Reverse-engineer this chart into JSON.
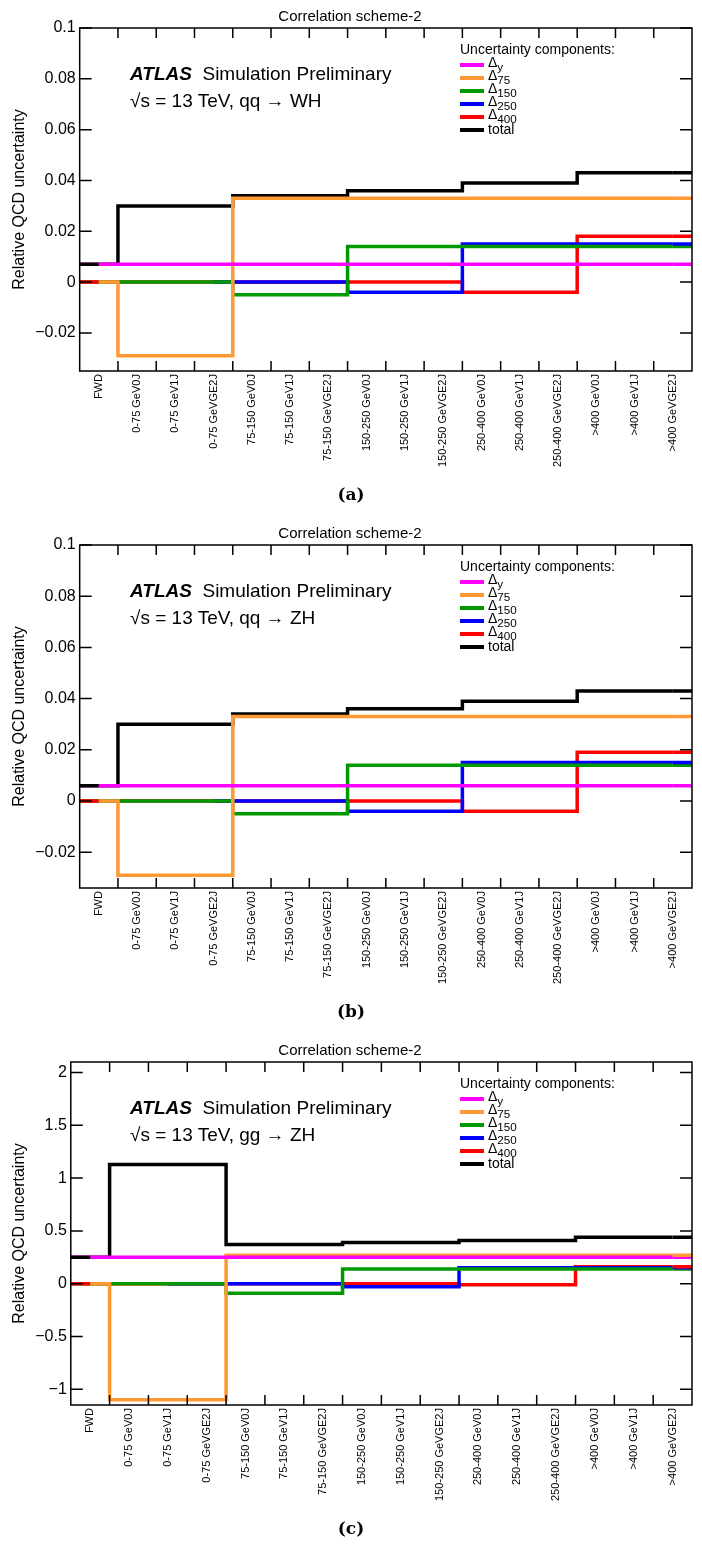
{
  "chart_data": [
    {
      "type": "step",
      "title": "Correlation scheme-2",
      "ylabel": "Relative QCD uncertainty",
      "legend_title": "Uncertainty components:",
      "legend": "top right",
      "grid": false,
      "annotations": [
        "ATLAS Simulation Preliminary",
        "√s = 13 TeV, qq → WH",
        "(a)"
      ],
      "categories": [
        "FWD",
        "0-75 GeV0J",
        "0-75 GeV1J",
        "0-75 GeVGE2J",
        "75-150 GeV0J",
        "75-150 GeV1J",
        "75-150 GeVGE2J",
        "150-250 GeV0J",
        "150-250 GeV1J",
        "150-250 GeVGE2J",
        "250-400 GeV0J",
        "250-400 GeV1J",
        "250-400 GeVGE2J",
        ">400 GeV0J",
        ">400 GeV1J",
        ">400 GeVGE2J"
      ],
      "ylim": [
        -0.035,
        0.1
      ],
      "yticks": [
        {
          "value": -0.02,
          "label": "−0.02"
        },
        0,
        0.02,
        0.04,
        0.06,
        0.08,
        0.1
      ],
      "series": [
        {
          "name": "Δ$_{y}$",
          "color": "#ff00ff",
          "values": [
            0.007,
            0.007,
            0.007,
            0.007,
            0.007,
            0.007,
            0.007,
            0.007,
            0.007,
            0.007,
            0.007,
            0.007,
            0.007,
            0.007,
            0.007,
            0.007
          ]
        },
        {
          "name": "Δ$_{75}$",
          "color": "#ff9933",
          "values": [
            0,
            -0.029,
            -0.029,
            -0.029,
            0.033,
            0.033,
            0.033,
            0.033,
            0.033,
            0.033,
            0.033,
            0.033,
            0.033,
            0.033,
            0.033,
            0.033
          ]
        },
        {
          "name": "Δ$_{150}$",
          "color": "#009900",
          "values": [
            0,
            0,
            0,
            0,
            -0.005,
            -0.005,
            -0.005,
            0.014,
            0.014,
            0.014,
            0.014,
            0.014,
            0.014,
            0.014,
            0.014,
            0.014
          ]
        },
        {
          "name": "Δ$_{250}$",
          "color": "#0000ff",
          "values": [
            null,
            null,
            null,
            0,
            0,
            0,
            0,
            -0.004,
            -0.004,
            -0.004,
            0.015,
            0.015,
            0.015,
            0.015,
            0.015,
            0.015
          ]
        },
        {
          "name": "Δ$_{400}$",
          "color": "#ff0000",
          "values": [
            0,
            0,
            0,
            0,
            0,
            0,
            0,
            0,
            0,
            0,
            -0.004,
            -0.004,
            -0.004,
            0.018,
            0.018,
            0.018
          ]
        },
        {
          "name": "total",
          "color": "#000000",
          "values": [
            0.007,
            0.03,
            0.03,
            0.03,
            0.034,
            0.034,
            0.034,
            0.036,
            0.036,
            0.036,
            0.039,
            0.039,
            0.039,
            0.043,
            0.043,
            0.043
          ]
        }
      ]
    },
    {
      "type": "step",
      "title": "Correlation scheme-2",
      "ylabel": "Relative QCD uncertainty",
      "legend_title": "Uncertainty components:",
      "legend": "top right",
      "grid": false,
      "annotations": [
        "ATLAS Simulation Preliminary",
        "√s = 13 TeV, qq → ZH",
        "(b)"
      ],
      "categories": [
        "FWD",
        "0-75 GeV0J",
        "0-75 GeV1J",
        "0-75 GeVGE2J",
        "75-150 GeV0J",
        "75-150 GeV1J",
        "75-150 GeVGE2J",
        "150-250 GeV0J",
        "150-250 GeV1J",
        "150-250 GeVGE2J",
        "250-400 GeV0J",
        "250-400 GeV1J",
        "250-400 GeVGE2J",
        ">400 GeV0J",
        ">400 GeV1J",
        ">400 GeVGE2J"
      ],
      "ylim": [
        -0.034,
        0.1
      ],
      "yticks": [
        {
          "value": -0.02,
          "label": "−0.02"
        },
        0,
        0.02,
        0.04,
        0.06,
        0.08,
        0.1
      ],
      "series": [
        {
          "name": "Δ$_{y}$",
          "color": "#ff00ff",
          "values": [
            0.006,
            0.006,
            0.006,
            0.006,
            0.006,
            0.006,
            0.006,
            0.006,
            0.006,
            0.006,
            0.006,
            0.006,
            0.006,
            0.006,
            0.006,
            0.006
          ]
        },
        {
          "name": "Δ$_{75}$",
          "color": "#ff9933",
          "values": [
            0,
            -0.029,
            -0.029,
            -0.029,
            0.033,
            0.033,
            0.033,
            0.033,
            0.033,
            0.033,
            0.033,
            0.033,
            0.033,
            0.033,
            0.033,
            0.033
          ]
        },
        {
          "name": "Δ$_{150}$",
          "color": "#009900",
          "values": [
            0,
            0,
            0,
            0,
            -0.005,
            -0.005,
            -0.005,
            0.014,
            0.014,
            0.014,
            0.014,
            0.014,
            0.014,
            0.014,
            0.014,
            0.014
          ]
        },
        {
          "name": "Δ$_{250}$",
          "color": "#0000ff",
          "values": [
            null,
            null,
            null,
            0,
            0,
            0,
            0,
            -0.004,
            -0.004,
            -0.004,
            0.015,
            0.015,
            0.015,
            0.015,
            0.015,
            0.015
          ]
        },
        {
          "name": "Δ$_{400}$",
          "color": "#ff0000",
          "values": [
            0,
            0,
            0,
            0,
            0,
            0,
            0,
            0,
            0,
            0,
            -0.004,
            -0.004,
            -0.004,
            0.019,
            0.019,
            0.019
          ]
        },
        {
          "name": "total",
          "color": "#000000",
          "values": [
            0.006,
            0.03,
            0.03,
            0.03,
            0.034,
            0.034,
            0.034,
            0.036,
            0.036,
            0.036,
            0.039,
            0.039,
            0.039,
            0.043,
            0.043,
            0.043
          ]
        }
      ]
    },
    {
      "type": "step",
      "title": "Correlation scheme-2",
      "ylabel": "Relative QCD uncertainty",
      "legend_title": "Uncertainty components:",
      "legend": "top right",
      "grid": false,
      "annotations": [
        "ATLAS Simulation Preliminary",
        "√s = 13 TeV, gg → ZH",
        "(c)"
      ],
      "categories": [
        "FWD",
        "0-75 GeV0J",
        "0-75 GeV1J",
        "0-75 GeVGE2J",
        "75-150 GeV0J",
        "75-150 GeV1J",
        "75-150 GeVGE2J",
        "150-250 GeV0J",
        "150-250 GeV1J",
        "150-250 GeVGE2J",
        "250-400 GeV0J",
        "250-400 GeV1J",
        "250-400 GeVGE2J",
        ">400 GeV0J",
        ">400 GeV1J",
        ">400 GeVGE2J"
      ],
      "ylim": [
        -1.15,
        2.1
      ],
      "yticks": [
        {
          "value": -1,
          "label": "−1"
        },
        {
          "value": -0.5,
          "label": "−0.5"
        },
        0,
        0.5,
        1,
        1.5,
        2
      ],
      "series": [
        {
          "name": "Δ$_{y}$",
          "color": "#ff00ff",
          "values": [
            0.25,
            0.25,
            0.25,
            0.25,
            0.25,
            0.25,
            0.25,
            0.25,
            0.25,
            0.25,
            0.25,
            0.25,
            0.25,
            0.25,
            0.25,
            0.25
          ]
        },
        {
          "name": "Δ$_{75}$",
          "color": "#ff9933",
          "values": [
            0,
            -1.1,
            -1.1,
            -1.1,
            0.27,
            0.27,
            0.27,
            0.27,
            0.27,
            0.27,
            0.27,
            0.27,
            0.27,
            0.27,
            0.27,
            0.27
          ]
        },
        {
          "name": "Δ$_{150}$",
          "color": "#009900",
          "values": [
            0,
            0,
            0,
            0,
            -0.09,
            -0.09,
            -0.09,
            0.14,
            0.14,
            0.14,
            0.14,
            0.14,
            0.14,
            0.14,
            0.14,
            0.14
          ]
        },
        {
          "name": "Δ$_{250}$",
          "color": "#0000ff",
          "values": [
            null,
            null,
            0,
            0,
            0,
            0,
            0,
            -0.03,
            -0.03,
            -0.03,
            0.15,
            0.15,
            0.15,
            0.15,
            0.15,
            0.15
          ]
        },
        {
          "name": "Δ$_{400}$",
          "color": "#ff0000",
          "values": [
            0,
            0,
            0,
            0,
            0,
            0,
            0,
            0,
            0,
            0,
            -0.01,
            -0.01,
            -0.01,
            0.16,
            0.16,
            0.16
          ]
        },
        {
          "name": "total",
          "color": "#000000",
          "values": [
            0.25,
            1.13,
            1.13,
            1.13,
            0.37,
            0.37,
            0.37,
            0.39,
            0.39,
            0.39,
            0.41,
            0.41,
            0.41,
            0.44,
            0.44,
            0.44
          ]
        }
      ]
    }
  ]
}
